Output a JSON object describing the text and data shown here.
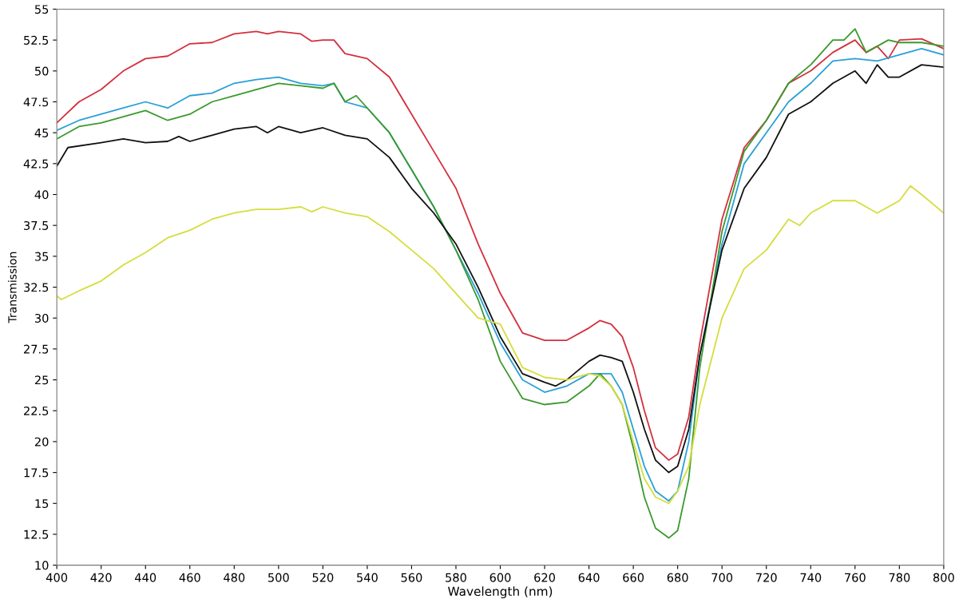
{
  "chart_data": {
    "type": "line",
    "xlabel": "Wavelength (nm)",
    "ylabel": "Transmission",
    "xlim": [
      400,
      800
    ],
    "xticks": [
      400,
      420,
      440,
      460,
      480,
      500,
      520,
      540,
      560,
      580,
      600,
      620,
      640,
      660,
      680,
      700,
      720,
      740,
      760,
      780,
      800
    ],
    "ylim": [
      10,
      55
    ],
    "yticks": [
      10,
      12.5,
      15,
      17.5,
      20,
      22.5,
      25,
      27.5,
      30,
      32.5,
      35,
      37.5,
      40,
      42.5,
      45,
      47.5,
      50,
      52.5,
      55
    ],
    "grid": false,
    "marker": "none",
    "line_style": "solid",
    "series": [
      {
        "color": "#d4303f",
        "x": [
          400,
          410,
          420,
          430,
          440,
          450,
          460,
          470,
          480,
          490,
          495,
          500,
          510,
          515,
          520,
          525,
          530,
          540,
          550,
          560,
          570,
          580,
          590,
          600,
          610,
          620,
          630,
          640,
          645,
          650,
          655,
          660,
          665,
          670,
          676,
          680,
          685,
          690,
          700,
          710,
          720,
          730,
          740,
          750,
          760,
          765,
          770,
          775,
          780,
          790,
          800
        ],
        "values": [
          45.8,
          47.5,
          48.5,
          50,
          51,
          51.2,
          52.2,
          52.3,
          53,
          53.2,
          53,
          53.2,
          53,
          52.4,
          52.5,
          52.5,
          51.4,
          51,
          49.5,
          46.5,
          43.5,
          40.5,
          36,
          32,
          28.8,
          28.2,
          28.2,
          29.2,
          29.8,
          29.5,
          28.5,
          26,
          22.5,
          19.5,
          18.5,
          19,
          22,
          28,
          38,
          43.8,
          46,
          49,
          50,
          51.5,
          52.5,
          51.5,
          52,
          51,
          52.5,
          52.6,
          51.8
        ]
      },
      {
        "color": "#2aa0d8",
        "x": [
          400,
          410,
          420,
          430,
          440,
          450,
          460,
          470,
          480,
          490,
          500,
          510,
          520,
          525,
          530,
          540,
          550,
          560,
          570,
          580,
          590,
          600,
          610,
          620,
          630,
          640,
          650,
          655,
          660,
          665,
          670,
          676,
          680,
          685,
          690,
          700,
          710,
          720,
          730,
          740,
          750,
          760,
          770,
          780,
          790,
          800
        ],
        "values": [
          45.2,
          46,
          46.5,
          47,
          47.5,
          47,
          48,
          48.2,
          49,
          49.3,
          49.5,
          49,
          48.8,
          49,
          47.5,
          47,
          45,
          42,
          39,
          35.5,
          32,
          28,
          25,
          24,
          24.5,
          25.5,
          25.5,
          24,
          21,
          18,
          16,
          15.2,
          16,
          20,
          27,
          36,
          42.5,
          45,
          47.5,
          49,
          50.8,
          51,
          50.8,
          51.3,
          51.8,
          51.3
        ]
      },
      {
        "color": "#3a9a2c",
        "x": [
          400,
          410,
          420,
          430,
          440,
          450,
          460,
          470,
          480,
          490,
          500,
          510,
          520,
          525,
          530,
          535,
          540,
          550,
          560,
          570,
          580,
          590,
          600,
          610,
          620,
          630,
          640,
          645,
          650,
          655,
          660,
          665,
          670,
          676,
          680,
          685,
          690,
          700,
          710,
          720,
          730,
          740,
          750,
          755,
          760,
          765,
          770,
          775,
          780,
          790,
          800
        ],
        "values": [
          44.5,
          45.5,
          45.8,
          46.3,
          46.8,
          46,
          46.5,
          47.5,
          48,
          48.5,
          49,
          48.8,
          48.6,
          49,
          47.5,
          48,
          47,
          45,
          42,
          39,
          35.5,
          31.5,
          26.5,
          23.5,
          23,
          23.2,
          24.5,
          25.5,
          24.5,
          23,
          19.5,
          15.5,
          13,
          12.2,
          12.8,
          17,
          26,
          37,
          43.5,
          46,
          49,
          50.5,
          52.5,
          52.5,
          53.4,
          51.5,
          52,
          52.5,
          52.3,
          52.3,
          52
        ]
      },
      {
        "color": "#111111",
        "x": [
          400,
          405,
          420,
          430,
          440,
          450,
          455,
          460,
          470,
          480,
          490,
          495,
          500,
          510,
          520,
          530,
          540,
          550,
          560,
          570,
          580,
          590,
          600,
          610,
          620,
          625,
          630,
          640,
          645,
          650,
          655,
          660,
          665,
          670,
          676,
          680,
          685,
          690,
          700,
          710,
          720,
          730,
          740,
          750,
          760,
          765,
          770,
          775,
          780,
          790,
          800
        ],
        "values": [
          42.3,
          43.8,
          44.2,
          44.5,
          44.2,
          44.3,
          44.7,
          44.3,
          44.8,
          45.3,
          45.5,
          45,
          45.5,
          45,
          45.4,
          44.8,
          44.5,
          43,
          40.5,
          38.5,
          36,
          32.5,
          28.5,
          25.5,
          24.8,
          24.5,
          25,
          26.5,
          27,
          26.8,
          26.5,
          24,
          21,
          18.5,
          17.5,
          18,
          21,
          27,
          35.5,
          40.5,
          43,
          46.5,
          47.5,
          49,
          50,
          49,
          50.5,
          49.5,
          49.5,
          50.5,
          50.3
        ]
      },
      {
        "color": "#d6dd3c",
        "x": [
          400,
          402,
          410,
          420,
          430,
          440,
          450,
          460,
          470,
          480,
          490,
          500,
          510,
          515,
          520,
          530,
          540,
          550,
          560,
          570,
          580,
          590,
          600,
          610,
          620,
          630,
          640,
          645,
          650,
          655,
          660,
          665,
          670,
          676,
          680,
          685,
          690,
          700,
          710,
          720,
          730,
          735,
          740,
          750,
          760,
          770,
          780,
          785,
          790,
          800
        ],
        "values": [
          31.8,
          31.5,
          32.2,
          33,
          34.3,
          35.3,
          36.5,
          37.1,
          38,
          38.5,
          38.8,
          38.8,
          39,
          38.6,
          39,
          38.5,
          38.2,
          37,
          35.5,
          34,
          32,
          30,
          29.5,
          26,
          25.2,
          25,
          25.5,
          25.3,
          24.5,
          23,
          20,
          17,
          15.5,
          15,
          16,
          18,
          23,
          30,
          34,
          35.5,
          38,
          37.5,
          38.5,
          39.5,
          39.5,
          38.5,
          39.5,
          40.7,
          40,
          38.5
        ]
      }
    ]
  }
}
